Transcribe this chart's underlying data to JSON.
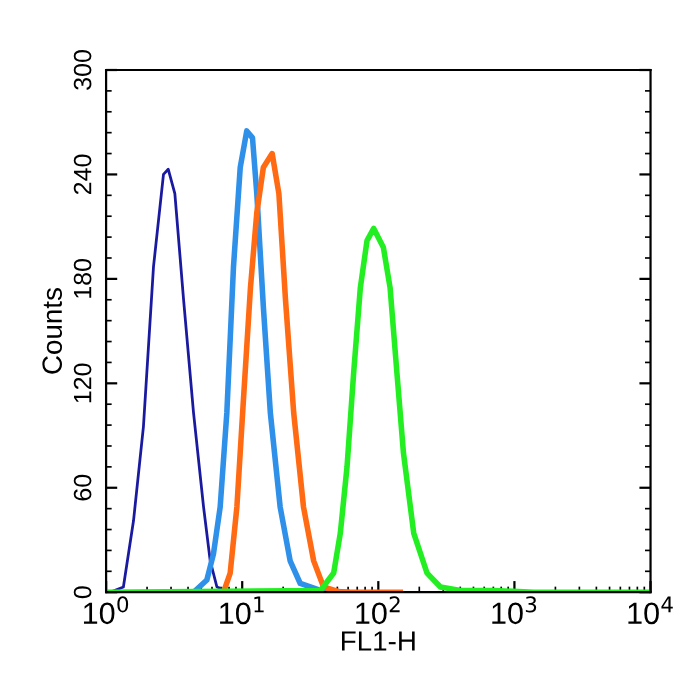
{
  "chart_data": {
    "type": "line",
    "xlabel": "FL1-H",
    "ylabel": "Counts",
    "log": "x",
    "grid": false,
    "legend": false,
    "marker": "none",
    "line_style": "solid",
    "xlim": [
      1,
      10000
    ],
    "xticks": [
      {
        "value": 1,
        "label": "10$^{0}$"
      },
      {
        "value": 10,
        "label": "10$^{1}$"
      },
      {
        "value": 100,
        "label": "10$^{2}$"
      },
      {
        "value": 1000,
        "label": "10$^{3}$"
      },
      {
        "value": 10000,
        "label": "10$^{4}$"
      }
    ],
    "ylim": [
      0,
      300
    ],
    "yticks": [
      0,
      60,
      120,
      180,
      240,
      300
    ],
    "series": [
      {
        "color": "#1a1aa0",
        "x": [
          1.07,
          1.34,
          1.59,
          1.88,
          2.23,
          2.64,
          2.86,
          3.2,
          3.71,
          4.39,
          5.2,
          5.82,
          6.52,
          7.71,
          12.1,
          21.3
        ],
        "values": [
          0,
          3,
          41,
          95,
          187,
          240,
          243,
          229,
          168,
          103,
          49,
          18,
          3,
          1,
          1,
          0
        ]
      },
      {
        "color": "#2e90e8",
        "x": [
          4.39,
          5.5,
          6.15,
          6.89,
          7.71,
          8.63,
          9.67,
          10.8,
          11.9,
          12.8,
          14.3,
          16.1,
          19.0,
          22.5,
          26.7,
          37.5,
          58.9
        ],
        "values": [
          0,
          7,
          22,
          49,
          103,
          187,
          244,
          265,
          261,
          229,
          164,
          103,
          49,
          18,
          5,
          1,
          0
        ]
      },
      {
        "color": "#ff6a13",
        "x": [
          7.29,
          8.16,
          9.14,
          10.2,
          11.5,
          12.8,
          14.3,
          16.6,
          18.6,
          20.8,
          23.9,
          28.2,
          33.5,
          39.6,
          52.6,
          145
        ],
        "values": [
          0,
          11,
          49,
          110,
          175,
          218,
          244,
          252,
          229,
          168,
          103,
          49,
          18,
          3,
          0,
          0
        ]
      },
      {
        "color": "#22ee22",
        "x": [
          1.01,
          37.5,
          47,
          52.6,
          58.9,
          65.9,
          73.8,
          82.6,
          92.5,
          109,
          122,
          137,
          153,
          182,
          228,
          286,
          401,
          705,
          1387,
          10000
        ],
        "values": [
          0,
          1,
          11,
          34,
          72,
          126,
          175,
          202,
          209,
          198,
          175,
          126,
          80,
          34,
          11,
          3,
          1,
          1,
          0,
          0
        ]
      }
    ]
  }
}
